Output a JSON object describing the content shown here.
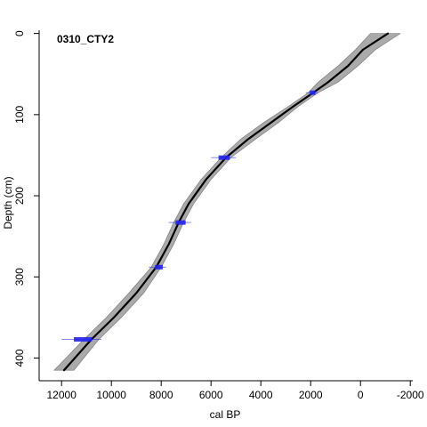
{
  "chart_data": {
    "type": "line",
    "title": "0310_CTY2",
    "xlabel": "cal BP",
    "ylabel": "Depth (cm)",
    "x_reversed": true,
    "y_reversed": true,
    "xlim": [
      12900,
      -2100
    ],
    "ylim": [
      428,
      -4
    ],
    "x_ticks": [
      12000,
      10000,
      8000,
      6000,
      4000,
      2000,
      0,
      -2000
    ],
    "x_tick_labels": [
      "12000",
      "10000",
      "8000",
      "6000",
      "4000",
      "2000",
      "0",
      "-2000"
    ],
    "y_ticks": [
      0,
      100,
      200,
      300,
      400
    ],
    "y_tick_labels": [
      "0",
      "100",
      "200",
      "300",
      "400"
    ],
    "colors": {
      "model_line": "#000000",
      "envelope": "#aaaaaa",
      "dates": "#2222ee"
    },
    "age_depth_model": {
      "depth": [
        0,
        20,
        40,
        60,
        73,
        90,
        110,
        130,
        153,
        180,
        210,
        233,
        260,
        288,
        320,
        350,
        377,
        415
      ],
      "age": [
        -1100,
        -100,
        500,
        1300,
        1900,
        2700,
        3600,
        4500,
        5400,
        6200,
        6900,
        7300,
        7700,
        8200,
        9000,
        9900,
        10800,
        11900
      ],
      "envelope_min": [
        -1600,
        -600,
        100,
        900,
        1700,
        2500,
        3300,
        4200,
        5200,
        6000,
        6700,
        7100,
        7500,
        8000,
        8700,
        9600,
        10500,
        11500
      ],
      "envelope_max": [
        -400,
        200,
        900,
        1700,
        2100,
        2900,
        3900,
        4800,
        5600,
        6400,
        7100,
        7500,
        7900,
        8400,
        9300,
        10200,
        11100,
        12300
      ]
    },
    "dated_levels": [
      {
        "depth": 73,
        "age_min": 1700,
        "age_max": 2200,
        "age_mode": 1900
      },
      {
        "depth": 153,
        "age_min": 5000,
        "age_max": 6000,
        "age_mode": 5450
      },
      {
        "depth": 233,
        "age_min": 6800,
        "age_max": 7700,
        "age_mode": 7200
      },
      {
        "depth": 288,
        "age_min": 7800,
        "age_max": 8500,
        "age_mode": 8050
      },
      {
        "depth": 377,
        "age_min": 10400,
        "age_max": 12000,
        "age_mode": 11100
      }
    ]
  }
}
